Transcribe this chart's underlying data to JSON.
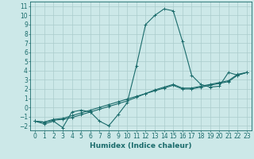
{
  "xlabel": "Humidex (Indice chaleur)",
  "background_color": "#cce8e8",
  "grid_color": "#aacccc",
  "line_color": "#1a6b6b",
  "xlim": [
    -0.5,
    23.5
  ],
  "ylim": [
    -2.5,
    11.5
  ],
  "xticks": [
    0,
    1,
    2,
    3,
    4,
    5,
    6,
    7,
    8,
    9,
    10,
    11,
    12,
    13,
    14,
    15,
    16,
    17,
    18,
    19,
    20,
    21,
    22,
    23
  ],
  "yticks": [
    -2,
    -1,
    0,
    1,
    2,
    3,
    4,
    5,
    6,
    7,
    8,
    9,
    10,
    11
  ],
  "series1_x": [
    0,
    1,
    2,
    3,
    4,
    5,
    6,
    7,
    8,
    9,
    10,
    11,
    12,
    13,
    14,
    15,
    16,
    17,
    18,
    19,
    20,
    21,
    22,
    23
  ],
  "series1_y": [
    -1.5,
    -1.8,
    -1.5,
    -2.2,
    -0.5,
    -0.3,
    -0.5,
    -1.5,
    -2.0,
    -0.8,
    0.5,
    4.5,
    9.0,
    10.0,
    10.7,
    10.5,
    7.2,
    3.5,
    2.5,
    2.2,
    2.3,
    3.8,
    3.5,
    3.8
  ],
  "series2_x": [
    0,
    1,
    2,
    3,
    4,
    5,
    6,
    7,
    8,
    9,
    10,
    11,
    12,
    13,
    14,
    15,
    16,
    17,
    18,
    19,
    20,
    21,
    22,
    23
  ],
  "series2_y": [
    -1.5,
    -1.6,
    -1.3,
    -1.2,
    -0.9,
    -0.6,
    -0.3,
    0.0,
    0.3,
    0.6,
    0.9,
    1.2,
    1.5,
    1.8,
    2.1,
    2.4,
    2.0,
    2.0,
    2.2,
    2.4,
    2.6,
    2.8,
    3.5,
    3.8
  ],
  "series3_x": [
    0,
    1,
    2,
    3,
    4,
    5,
    6,
    7,
    8,
    9,
    10,
    11,
    12,
    13,
    14,
    15,
    16,
    17,
    18,
    19,
    20,
    21,
    22,
    23
  ],
  "series3_y": [
    -1.5,
    -1.6,
    -1.4,
    -1.3,
    -1.1,
    -0.8,
    -0.5,
    -0.2,
    0.1,
    0.4,
    0.7,
    1.1,
    1.5,
    1.9,
    2.2,
    2.5,
    2.1,
    2.1,
    2.3,
    2.5,
    2.7,
    2.9,
    3.6,
    3.8
  ],
  "tick_fontsize": 5.5,
  "xlabel_fontsize": 6.5
}
